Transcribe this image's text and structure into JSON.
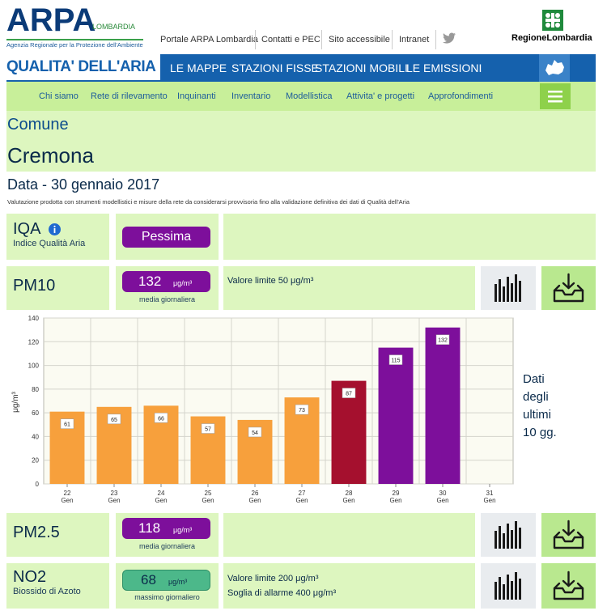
{
  "header": {
    "logo_text": "ARPA",
    "logo_sub": "LOMBARDIA",
    "agency": "Agenzia Regionale per la Protezione dell'Ambiente",
    "links": [
      "Portale ARPA Lombardia",
      "Contatti e PEC",
      "Sito accessibile",
      "Intranet"
    ],
    "region": "RegioneLombardia"
  },
  "nav": {
    "title": "QUALITA' DELL'ARIA",
    "main": [
      "LE MAPPE",
      "STAZIONI FISSE",
      "STAZIONI MOBILI",
      "LE EMISSIONI"
    ],
    "sub": [
      "Chi siamo",
      "Rete di rilevamento",
      "Inquinanti",
      "Inventario",
      "Modellistica",
      "Attivita' e progetti",
      "Approfondimenti"
    ]
  },
  "page": {
    "comune_label": "Comune",
    "city": "Cremona",
    "date": "Data - 30 gennaio 2017",
    "note": "Valutazione prodotta con strumenti modellistici e misure della rete da considerarsi provvisoria fino alla validazione definitiva dei dati di Qualità dell'Aria"
  },
  "iqa": {
    "label": "IQA",
    "sub": "Indice Qualità Aria",
    "value": "Pessima",
    "color": "#7d0f9b"
  },
  "pm10": {
    "label": "PM10",
    "value": "132",
    "unit": "μg/m³",
    "sub": "media giornaliera",
    "limit": "Valore limite 50 μg/m³",
    "color": "#7d0f9b"
  },
  "pm25": {
    "label": "PM2.5",
    "value": "118",
    "unit": "μg/m³",
    "sub": "media giornaliera",
    "color": "#7d0f9b"
  },
  "no2": {
    "label": "NO2",
    "sublabel": "Biossido di Azoto",
    "value": "68",
    "unit": "μg/m³",
    "sub": "massimo giornaliero",
    "limit1": "Valore limite 200 μg/m³",
    "limit2": "Soglia di allarme 400 μg/m³",
    "color": "#4cb88a"
  },
  "chart_side": [
    "Dati",
    "degli",
    "ultimi",
    "10 gg."
  ],
  "chart_data": {
    "type": "bar",
    "title": "",
    "xlabel": "",
    "ylabel": "μg/m³",
    "ylim": [
      0,
      140
    ],
    "yticks": [
      0,
      20,
      40,
      60,
      80,
      100,
      120,
      140
    ],
    "categories": [
      "22 Gen",
      "23 Gen",
      "24 Gen",
      "25 Gen",
      "26 Gen",
      "27 Gen",
      "28 Gen",
      "29 Gen",
      "30 Gen",
      "31 Gen"
    ],
    "values": [
      61,
      65,
      66,
      57,
      54,
      73,
      87,
      115,
      132,
      null
    ],
    "colors": [
      "#f7a03c",
      "#f7a03c",
      "#f7a03c",
      "#f7a03c",
      "#f7a03c",
      "#f7a03c",
      "#a5102e",
      "#7d0f9b",
      "#7d0f9b",
      ""
    ]
  }
}
